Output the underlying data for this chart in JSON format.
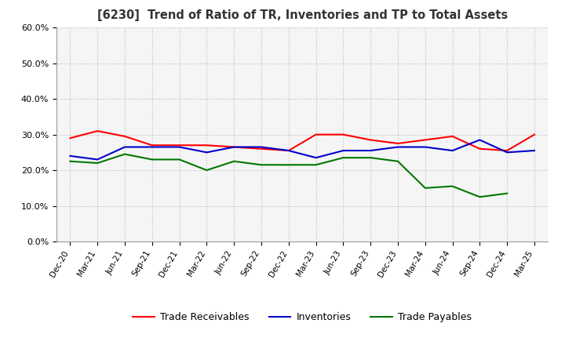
{
  "title": "[6230]  Trend of Ratio of TR, Inventories and TP to Total Assets",
  "x_labels": [
    "Dec-20",
    "Mar-21",
    "Jun-21",
    "Sep-21",
    "Dec-21",
    "Mar-22",
    "Jun-22",
    "Sep-22",
    "Dec-22",
    "Mar-23",
    "Jun-23",
    "Sep-23",
    "Dec-23",
    "Mar-24",
    "Jun-24",
    "Sep-24",
    "Dec-24",
    "Mar-25"
  ],
  "trade_receivables": [
    0.29,
    0.31,
    0.295,
    0.27,
    0.27,
    0.27,
    0.265,
    0.26,
    0.255,
    0.3,
    0.3,
    0.285,
    0.275,
    0.285,
    0.295,
    0.26,
    0.255,
    0.3
  ],
  "inventories": [
    0.24,
    0.23,
    0.265,
    0.265,
    0.265,
    0.25,
    0.265,
    0.265,
    0.255,
    0.235,
    0.255,
    0.255,
    0.265,
    0.265,
    0.255,
    0.285,
    0.25,
    0.255
  ],
  "trade_payables": [
    0.225,
    0.22,
    0.245,
    0.23,
    0.23,
    0.2,
    0.225,
    0.215,
    0.215,
    0.215,
    0.235,
    0.235,
    0.225,
    0.15,
    0.155,
    0.125,
    0.135,
    null
  ],
  "ylim": [
    0.0,
    0.6
  ],
  "yticks": [
    0.0,
    0.1,
    0.2,
    0.3,
    0.4,
    0.5,
    0.6
  ],
  "line_colors": {
    "trade_receivables": "#ff0000",
    "inventories": "#0000cc",
    "trade_payables": "#007700"
  },
  "legend_labels": [
    "Trade Receivables",
    "Inventories",
    "Trade Payables"
  ],
  "background_color": "#ffffff",
  "plot_bg_color": "#f5f5f5",
  "grid_color": "#bbbbbb",
  "title_color": "#333333"
}
